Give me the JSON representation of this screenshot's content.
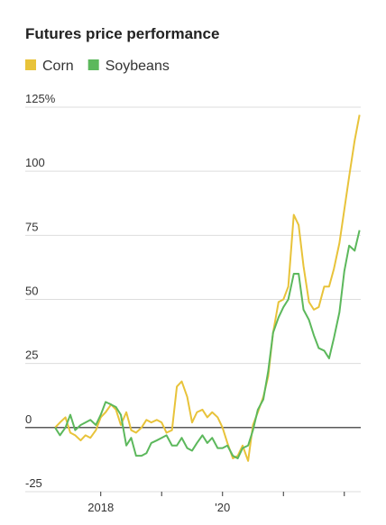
{
  "chart_data": {
    "type": "line",
    "title": "Futures price performance",
    "x": [
      2017.25,
      2017.33,
      2017.42,
      2017.5,
      2017.58,
      2017.67,
      2017.75,
      2017.83,
      2017.92,
      2018,
      2018.08,
      2018.17,
      2018.25,
      2018.33,
      2018.42,
      2018.5,
      2018.58,
      2018.67,
      2018.75,
      2018.83,
      2018.92,
      2019,
      2019.08,
      2019.17,
      2019.25,
      2019.33,
      2019.42,
      2019.5,
      2019.58,
      2019.67,
      2019.75,
      2019.83,
      2019.92,
      2020,
      2020.08,
      2020.17,
      2020.25,
      2020.33,
      2020.42,
      2020.5,
      2020.58,
      2020.67,
      2020.75,
      2020.83,
      2020.92,
      2021,
      2021.08,
      2021.17,
      2021.25,
      2021.33,
      2021.42,
      2021.5,
      2021.58,
      2021.67,
      2021.75,
      2021.83,
      2021.92,
      2022,
      2022.08,
      2022.17,
      2022.25
    ],
    "series": [
      {
        "name": "Corn",
        "color": "#e8c33a",
        "values": [
          0,
          2,
          4,
          -2,
          -3,
          -5,
          -3,
          -4,
          -1,
          4,
          6,
          9,
          7,
          1,
          6,
          -1,
          -2,
          0,
          3,
          2,
          3,
          2,
          -2,
          -1,
          16,
          18,
          12,
          2,
          6,
          7,
          4,
          6,
          4,
          0,
          -6,
          -12,
          -11,
          -7,
          -13,
          1,
          6,
          12,
          20,
          37,
          49,
          50,
          55,
          83,
          79,
          63,
          49,
          46,
          47,
          55,
          55,
          62,
          72,
          85,
          98,
          112,
          122
        ]
      },
      {
        "name": "Soybeans",
        "color": "#5cb85c",
        "values": [
          0,
          -3,
          0,
          5,
          -1,
          1,
          2,
          3,
          1,
          5,
          10,
          9,
          8,
          5,
          -7,
          -4,
          -11,
          -11,
          -10,
          -6,
          -5,
          -4,
          -3,
          -7,
          -7,
          -4,
          -8,
          -9,
          -6,
          -3,
          -6,
          -4,
          -8,
          -8,
          -7,
          -11,
          -12,
          -8,
          -7,
          -1,
          7,
          11,
          22,
          37,
          43,
          47,
          50,
          60,
          60,
          46,
          42,
          36,
          31,
          30,
          27,
          35,
          45,
          61,
          71,
          69,
          77
        ]
      }
    ],
    "xlim": [
      2016.76,
      2022.27
    ],
    "xticks": [
      2018,
      {
        "value": 2019,
        "label": null
      },
      {
        "value": 2020,
        "label": "'20"
      },
      {
        "value": 2021,
        "label": null
      },
      {
        "value": 2022,
        "label": null
      }
    ],
    "ylim": [
      -25,
      125
    ],
    "yticks": [
      {
        "value": 125,
        "label": "125%"
      },
      100,
      75,
      50,
      25,
      0,
      -25
    ],
    "grid": true
  }
}
